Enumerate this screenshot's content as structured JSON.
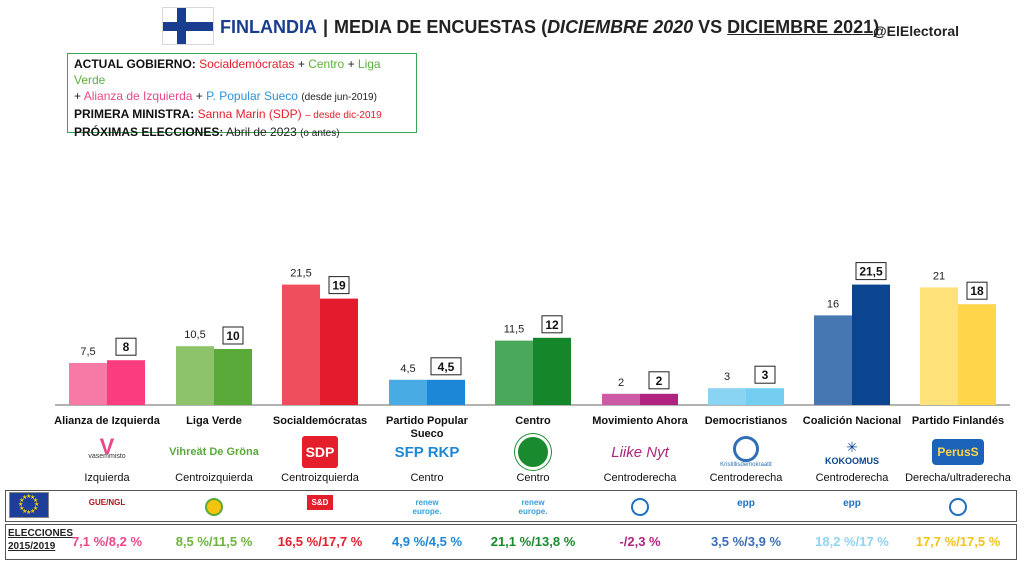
{
  "header": {
    "country": "FINLANDIA",
    "separator": "|",
    "title_pre": "MEDIA DE ENCUESTAS (",
    "date_old": "DICIEMBRE 2020",
    "vs": " VS ",
    "date_new": "DICIEMBRE 2021",
    "title_post": ")",
    "handle": "@ElElectoral"
  },
  "info": {
    "gov_label": "ACTUAL GOBIERNO:",
    "gov_p1": "Socialdemócratas",
    "plus": " + ",
    "gov_p2": "Centro",
    "gov_p3": "Liga Verde",
    "gov_p4": "Alianza de Izquierda",
    "gov_p5": "P. Popular Sueco",
    "gov_since": "(desde jun-2019)",
    "pm_label": "PRIMERA MINISTRA:",
    "pm_name": "Sanna Marin (SDP)",
    "pm_since": "– desde dic-2019",
    "next_label": "PRÓXIMAS ELECCIONES:",
    "next_value": "Abril de 2023",
    "next_note": "(o antes)"
  },
  "chart_data": {
    "type": "bar",
    "categories": [
      "Alianza de Izquierda",
      "Liga Verde",
      "Socialdemócratas",
      "Partido Popular Sueco",
      "Centro",
      "Movimiento Ahora",
      "Democristianos",
      "Coalición Nacional",
      "Partido Finlandés"
    ],
    "series": [
      {
        "values": [
          7.5,
          10.5,
          21.5,
          4.5,
          11.5,
          2,
          3,
          16,
          21
        ],
        "labels": [
          "7,5",
          "10,5",
          "21,5",
          "4,5",
          "11,5",
          "2",
          "3",
          "16",
          "21"
        ]
      },
      {
        "values": [
          8,
          10,
          19,
          4.5,
          12,
          2,
          3,
          21.5,
          18
        ],
        "labels": [
          "8",
          "10",
          "19",
          "4,5",
          "12",
          "2",
          "3",
          "21,5",
          "18"
        ]
      }
    ],
    "colors_old": [
      "#f77aa6",
      "#8dc46b",
      "#ef4f5c",
      "#49abe3",
      "#4aa85a",
      "#cc5aa4",
      "#88d4f2",
      "#4777b3",
      "#ffe17a"
    ],
    "colors_new": [
      "#fb3d7f",
      "#5aaa3a",
      "#e41b2c",
      "#1b87d6",
      "#16862a",
      "#b0237f",
      "#73cef2",
      "#0b4590",
      "#ffd64a"
    ],
    "ylim": [
      0,
      24
    ]
  },
  "parties": [
    {
      "name": "Alianza de Izquierda",
      "logo_text": "vasemmisto",
      "ideology": "Izquierda",
      "elections": "7,1 %/8,2 %",
      "elec_color": "#e8488a"
    },
    {
      "name": "Liga Verde",
      "logo_text": "Vihreät De Gröna",
      "ideology": "Centroizquierda",
      "elections": "8,5 %/11,5 %",
      "elec_color": "#6db33f"
    },
    {
      "name": "Socialdemócratas",
      "logo_text": "SDP",
      "ideology": "Centroizquierda",
      "elections": "16,5 %/17,7 %",
      "elec_color": "#e41e2b"
    },
    {
      "name": "Partido Popular Sueco",
      "logo_text": "SFP RKP",
      "ideology": "Centro",
      "elections": "4,9 %/4,5 %",
      "elec_color": "#1e88d6"
    },
    {
      "name": "Centro",
      "logo_text": "",
      "ideology": "Centro",
      "elections": "21,1 %/13,8 %",
      "elec_color": "#1a8a2e"
    },
    {
      "name": "Movimiento Ahora",
      "logo_text": "Liike Nyt",
      "ideology": "Centroderecha",
      "elections": "-/2,3 %",
      "elec_color": "#b0237f"
    },
    {
      "name": "Democristianos",
      "logo_text": "Kristillisdemokraatit",
      "ideology": "Centroderecha",
      "elections": "3,5 %/3,9 %",
      "elec_color": "#3a6db5"
    },
    {
      "name": "Coalición Nacional",
      "logo_text": "KOKOOMUS",
      "ideology": "Centroderecha",
      "elections": "18,2 %/17 %",
      "elec_color": "#8fd3f2"
    },
    {
      "name": "Partido Finlandés",
      "logo_text": "PerusS",
      "ideology": "Derecha/ultraderecha",
      "elections": "17,7 %/17,5 %",
      "elec_color": "#f0c419"
    }
  ],
  "eu_groups": [
    "GUE/NGL",
    "",
    "S&D",
    "renew europe.",
    "renew europe.",
    "",
    "epp",
    "epp",
    ""
  ],
  "elections_label_1": "ELECCIONES",
  "elections_label_2": "2015/2019"
}
